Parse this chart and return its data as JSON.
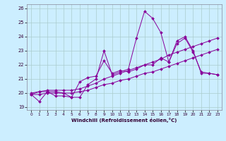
{
  "title": "",
  "xlabel": "Windchill (Refroidissement éolien,°C)",
  "background_color": "#cceeff",
  "line_color": "#880099",
  "grid_color": "#aacccc",
  "xlim": [
    -0.5,
    23.5
  ],
  "ylim": [
    18.8,
    26.3
  ],
  "yticks": [
    19,
    20,
    21,
    22,
    23,
    24,
    25,
    26
  ],
  "xticks": [
    0,
    1,
    2,
    3,
    4,
    5,
    6,
    7,
    8,
    9,
    10,
    11,
    12,
    13,
    14,
    15,
    16,
    17,
    18,
    19,
    20,
    21,
    22,
    23
  ],
  "lines": [
    {
      "x": [
        0,
        1,
        2,
        3,
        4,
        5,
        6,
        7,
        8,
        9,
        10,
        11,
        12,
        13,
        14,
        15,
        16,
        17,
        18,
        19,
        20,
        21,
        22,
        23
      ],
      "y": [
        19.9,
        19.4,
        20.1,
        19.8,
        19.8,
        19.7,
        19.7,
        20.6,
        21.0,
        23.0,
        21.3,
        21.5,
        21.7,
        23.9,
        25.8,
        25.3,
        24.3,
        22.2,
        23.5,
        23.9,
        22.9,
        21.5,
        21.4,
        21.3
      ]
    },
    {
      "x": [
        0,
        1,
        2,
        3,
        4,
        5,
        6,
        7,
        8,
        9,
        10,
        11,
        12,
        13,
        14,
        15,
        16,
        17,
        18,
        19,
        20,
        21,
        22,
        23
      ],
      "y": [
        20.0,
        20.1,
        20.2,
        20.2,
        20.2,
        20.2,
        20.3,
        20.5,
        20.7,
        21.0,
        21.2,
        21.4,
        21.6,
        21.8,
        22.0,
        22.2,
        22.4,
        22.7,
        22.9,
        23.1,
        23.3,
        23.5,
        23.7,
        23.9
      ]
    },
    {
      "x": [
        0,
        1,
        2,
        3,
        4,
        5,
        6,
        7,
        8,
        9,
        10,
        11,
        12,
        13,
        14,
        15,
        16,
        17,
        18,
        19,
        20,
        21,
        22,
        23
      ],
      "y": [
        19.9,
        19.9,
        20.0,
        20.0,
        20.0,
        20.0,
        20.1,
        20.2,
        20.4,
        20.6,
        20.7,
        20.9,
        21.0,
        21.2,
        21.4,
        21.5,
        21.7,
        21.9,
        22.1,
        22.3,
        22.5,
        22.7,
        22.9,
        23.1
      ]
    },
    {
      "x": [
        0,
        1,
        2,
        3,
        4,
        5,
        6,
        7,
        8,
        9,
        10,
        11,
        12,
        13,
        14,
        15,
        16,
        17,
        18,
        19,
        20,
        21,
        22,
        23
      ],
      "y": [
        19.9,
        20.1,
        20.1,
        20.1,
        20.0,
        19.7,
        20.8,
        21.1,
        21.2,
        22.3,
        21.4,
        21.6,
        21.5,
        21.7,
        22.0,
        22.0,
        22.5,
        22.2,
        23.7,
        24.0,
        23.0,
        21.4,
        21.4,
        21.3
      ]
    }
  ]
}
